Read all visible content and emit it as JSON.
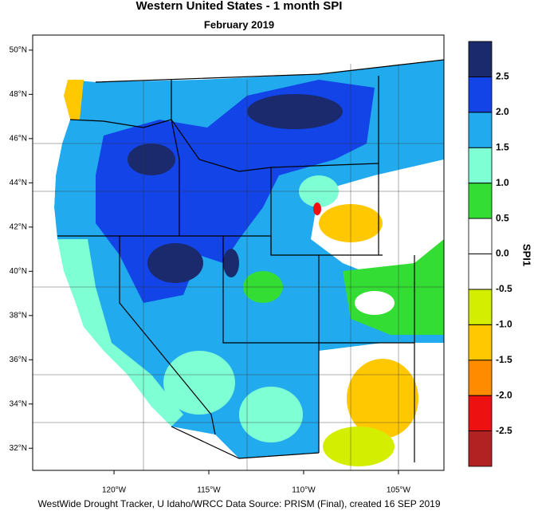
{
  "header": {
    "title": "Western United States - 1 month SPI",
    "subtitle": "February 2019"
  },
  "map": {
    "lat_lim": [
      31,
      50.68
    ],
    "lon_lim": [
      -124.29,
      -102.6
    ],
    "lat_ticks": [
      {
        "value": 50,
        "label": "50°N"
      },
      {
        "value": 48,
        "label": "48°N"
      },
      {
        "value": 46,
        "label": "46°N"
      },
      {
        "value": 44,
        "label": "44°N"
      },
      {
        "value": 42,
        "label": "42°N"
      },
      {
        "value": 40,
        "label": "40°N"
      },
      {
        "value": 38,
        "label": "38°N"
      },
      {
        "value": 36,
        "label": "36°N"
      },
      {
        "value": 34,
        "label": "34°N"
      },
      {
        "value": 32,
        "label": "32°N"
      }
    ],
    "lon_ticks": [
      {
        "value": -120,
        "label": "120°W"
      },
      {
        "value": -115,
        "label": "115°W"
      },
      {
        "value": -110,
        "label": "110°W"
      },
      {
        "value": -105,
        "label": "105°W"
      }
    ]
  },
  "colorbar": {
    "title": "SPI1",
    "lim": [
      -3,
      3
    ],
    "ticks": [
      2.5,
      {
        "value": 2,
        "label": "2.0"
      },
      1.5,
      {
        "value": 1,
        "label": "1.0"
      },
      0.5,
      {
        "value": 0,
        "label": "0.0"
      },
      -0.5,
      {
        "value": -1,
        "label": "-1.0"
      },
      -1.5,
      {
        "value": -2,
        "label": "-2.0"
      },
      -2.5
    ],
    "colors": [
      "#b22222",
      "#ee1111",
      "#ff8c00",
      "#ffc800",
      "#d4ee00",
      "#ffffff",
      "#ffffff",
      "#33dd33",
      "#7fffd4",
      "#22aaee",
      "#1244e8",
      "#1a2a6c"
    ]
  },
  "footer": "WestWide Drought Tracker, U Idaho/WRCC Data Source: PRISM (Final), created 16 SEP 2019"
}
